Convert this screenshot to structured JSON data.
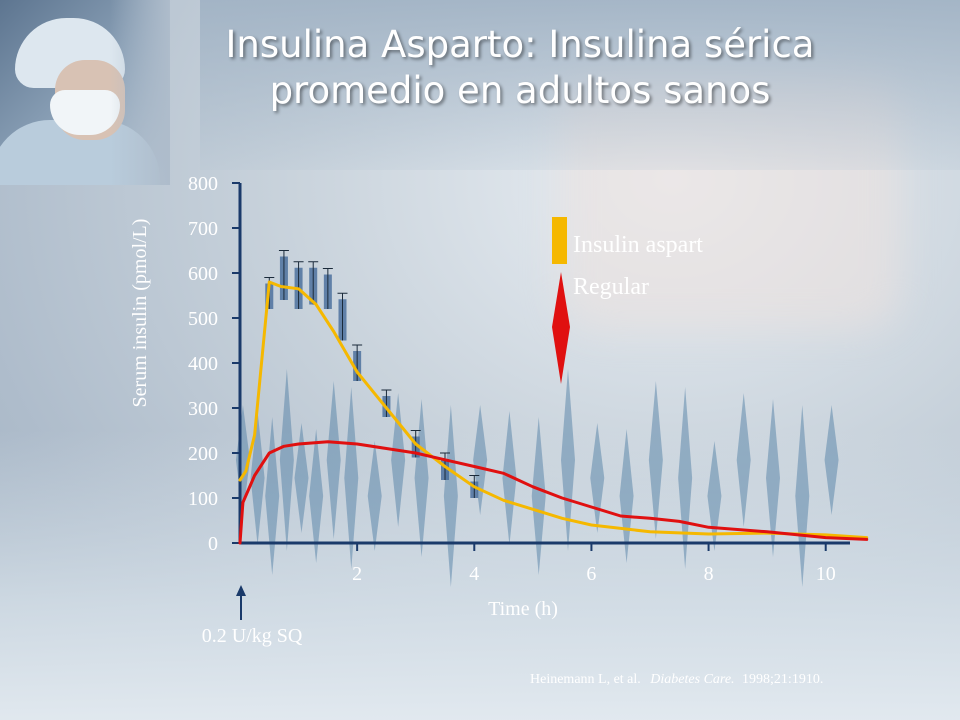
{
  "title_line1": "Insulina Asparto: Insulina sérica",
  "title_line2": "promedio en adultos sanos",
  "dose_label": "0.2 U/kg SQ",
  "citation": {
    "authors": "Heinemann L, et al.",
    "journal": "Diabetes Care.",
    "rest": "1998;21:1910."
  },
  "colors": {
    "aspart": "#f5b800",
    "regular": "#e01010",
    "axis": "#1a3a6a",
    "text": "#ffffff"
  },
  "chart_data": {
    "type": "line",
    "xlabel": "Time (h)",
    "ylabel": "Serum insulin (pmol/L)",
    "xlim": [
      0,
      10.5
    ],
    "ylim": [
      0,
      800
    ],
    "x_ticks": [
      2,
      4,
      6,
      8,
      10
    ],
    "y_ticks": [
      0,
      100,
      200,
      300,
      400,
      500,
      600,
      700,
      800
    ],
    "legend_placement": "top-right",
    "series": [
      {
        "name": "Insulin aspart",
        "color": "#f5b800",
        "x": [
          0,
          0.1,
          0.25,
          0.5,
          0.7,
          1.0,
          1.3,
          1.6,
          2.0,
          2.5,
          3.0,
          3.5,
          4.0,
          4.5,
          5.0,
          5.5,
          6.0,
          7.0,
          8.0,
          9.0,
          10.0,
          10.7
        ],
        "y": [
          140,
          160,
          240,
          580,
          570,
          565,
          530,
          470,
          380,
          300,
          220,
          170,
          125,
          95,
          75,
          55,
          40,
          25,
          20,
          22,
          18,
          12
        ]
      },
      {
        "name": "Regular",
        "color": "#e01010",
        "x": [
          0,
          0.05,
          0.25,
          0.5,
          0.75,
          1.0,
          1.5,
          2.0,
          2.5,
          3.0,
          3.5,
          4.0,
          4.5,
          5.0,
          5.5,
          6.0,
          6.5,
          7.0,
          7.5,
          8.0,
          9.0,
          10.0,
          10.7
        ],
        "y": [
          0,
          90,
          150,
          200,
          215,
          220,
          225,
          220,
          210,
          200,
          185,
          170,
          155,
          125,
          100,
          80,
          60,
          55,
          48,
          35,
          25,
          12,
          8
        ]
      }
    ],
    "error_bars": {
      "x": [
        0.5,
        0.75,
        1.0,
        1.25,
        1.5,
        1.75,
        2.0,
        2.5,
        3.0,
        3.5,
        4.0
      ],
      "low": [
        520,
        540,
        520,
        530,
        520,
        450,
        360,
        280,
        190,
        140,
        100
      ],
      "high": [
        590,
        650,
        625,
        625,
        610,
        555,
        440,
        340,
        250,
        200,
        150
      ]
    }
  }
}
